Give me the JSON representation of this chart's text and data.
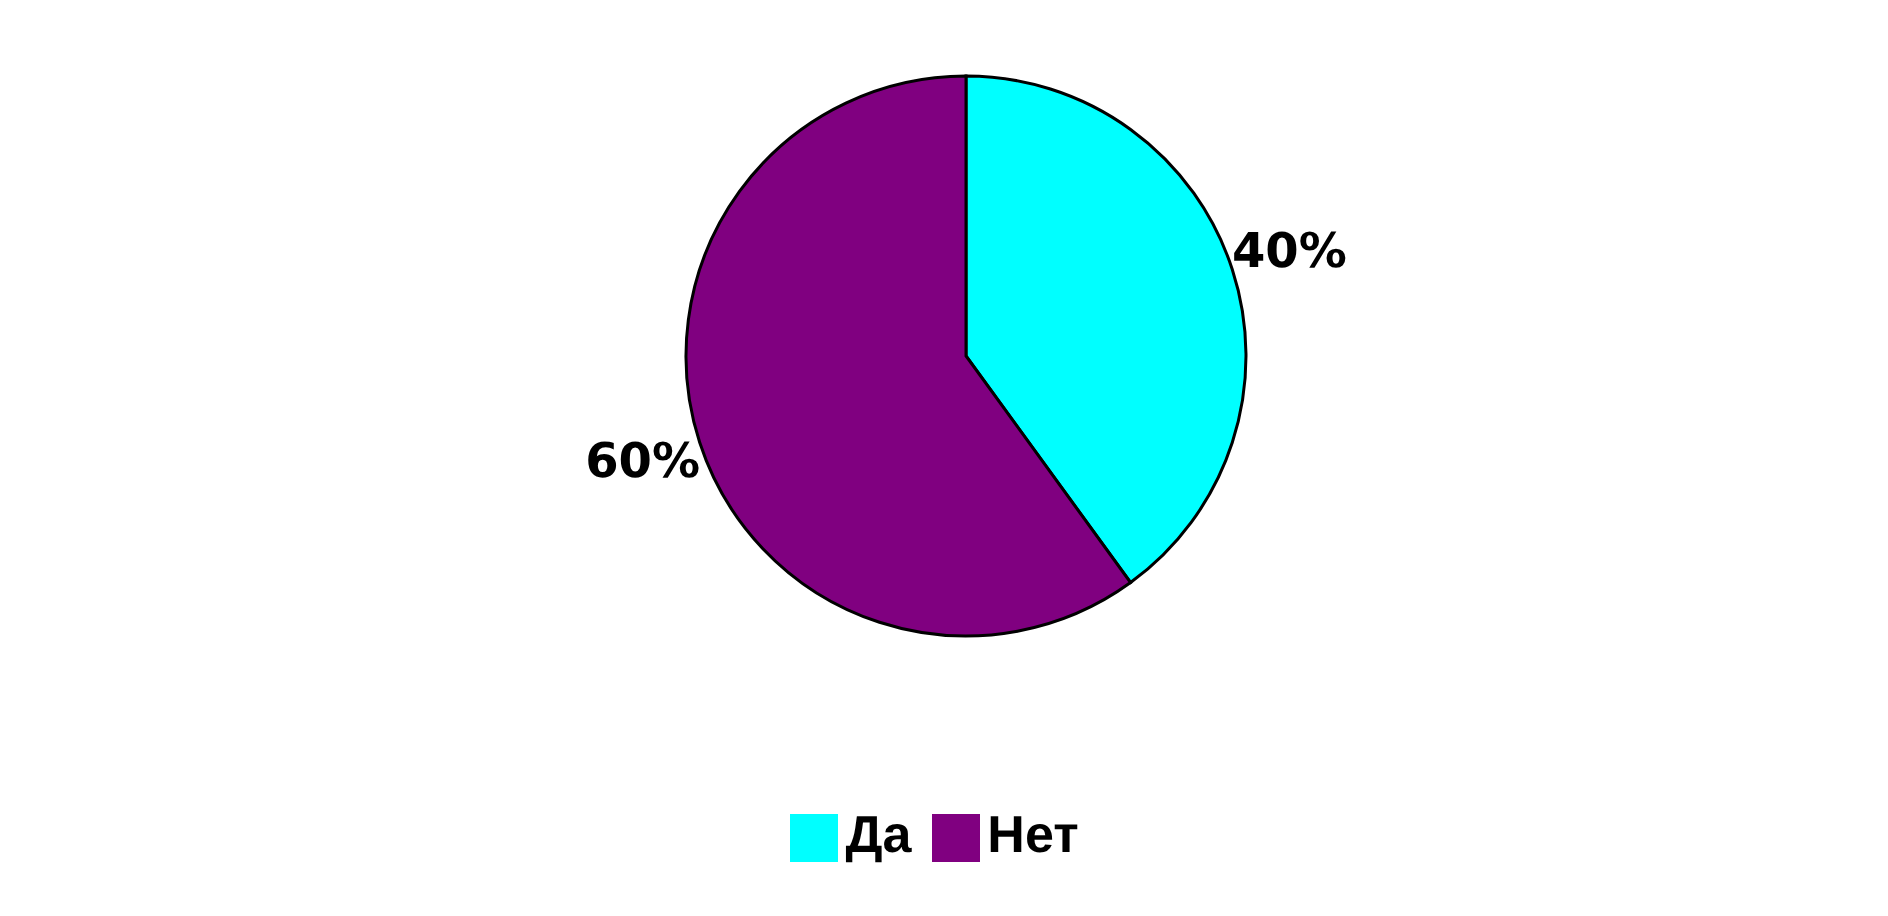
{
  "chart_data": {
    "type": "pie",
    "categories": [
      "Да",
      "Нет"
    ],
    "values": [
      40,
      60
    ],
    "colors": [
      "#00ffff",
      "#800080"
    ],
    "value_labels": [
      "40%",
      "60%"
    ],
    "legend": "bottom"
  }
}
